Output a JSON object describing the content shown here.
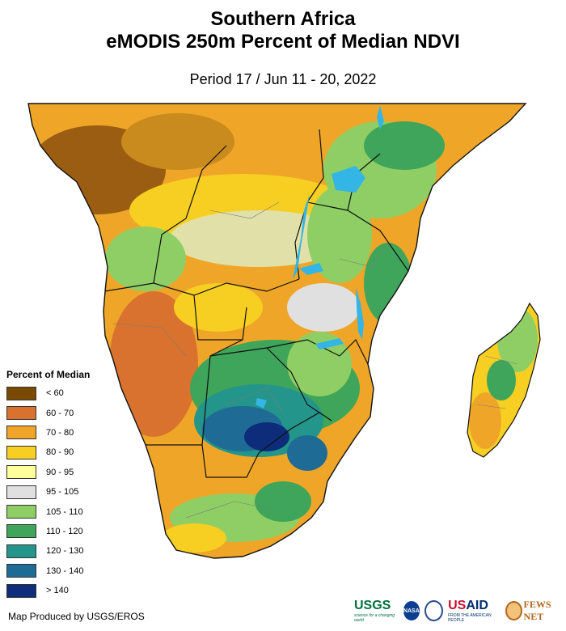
{
  "title": {
    "line1": "Southern Africa",
    "line2": "eMODIS 250m Percent of Median NDVI"
  },
  "period": "Period 17 / Jun 11 - 20, 2022",
  "legend": {
    "title": "Percent of Median",
    "classes": [
      {
        "label": "< 60",
        "color": "#7a4a05"
      },
      {
        "label": "60 - 70",
        "color": "#d9722e"
      },
      {
        "label": "70 - 80",
        "color": "#efa628"
      },
      {
        "label": "80 - 90",
        "color": "#f7cf22"
      },
      {
        "label": "90 - 95",
        "color": "#fefe9a"
      },
      {
        "label": "95 - 105",
        "color": "#e0e0e0"
      },
      {
        "label": "105 - 110",
        "color": "#8ece64"
      },
      {
        "label": "110 - 120",
        "color": "#3ea55a"
      },
      {
        "label": "120 - 130",
        "color": "#24958a"
      },
      {
        "label": "130 - 140",
        "color": "#1e6b96"
      },
      {
        "label": "> 140",
        "color": "#0d2c7a"
      }
    ]
  },
  "credit": "Map Produced by USGS/EROS",
  "logos": {
    "usgs": "USGS",
    "usgs_tagline": "science for a changing world",
    "nasa": "NASA",
    "usaid_us": "US",
    "usaid_aid": "AID",
    "usaid_tagline": "FROM THE AMERICAN PEOPLE",
    "fews": "FEWS NET"
  },
  "colors": {
    "water": "#33b5e5",
    "border": "#111111",
    "admin": "#7c7c7c"
  }
}
